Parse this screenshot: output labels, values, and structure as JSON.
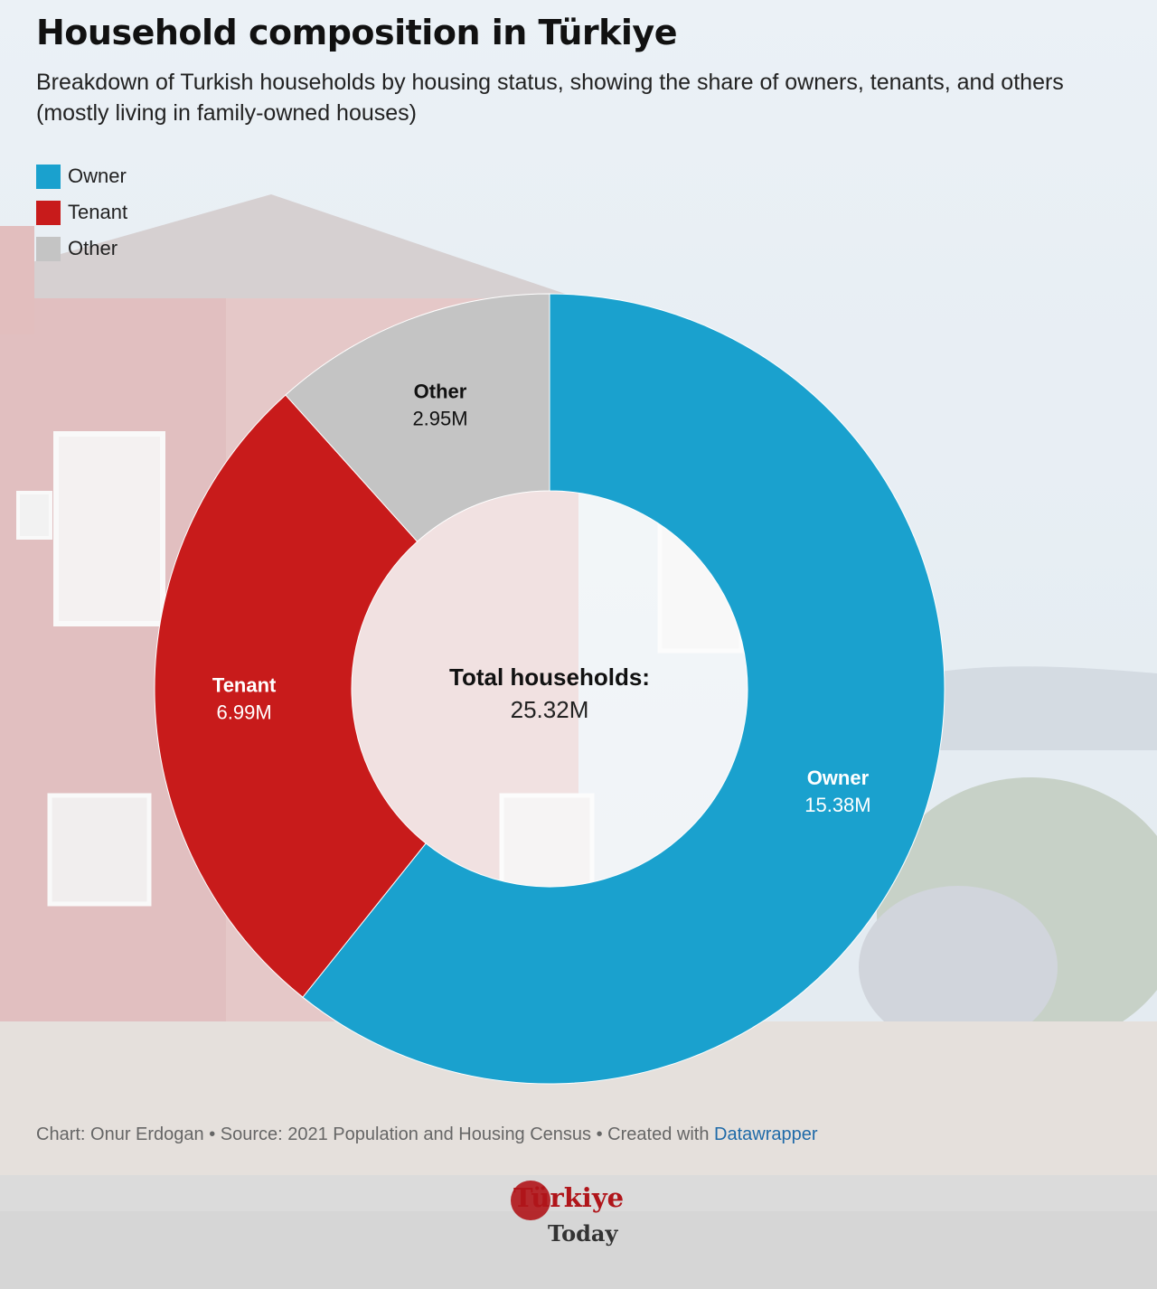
{
  "header": {
    "title": "Household composition in Türkiye",
    "subtitle": "Breakdown of Turkish households by housing status, showing the share of owners, tenants, and others (mostly living in family-owned houses)"
  },
  "legend": [
    {
      "label": "Owner",
      "color": "#1aa1ce"
    },
    {
      "label": "Tenant",
      "color": "#c81b1b"
    },
    {
      "label": "Other",
      "color": "#c4c4c4"
    }
  ],
  "chart_data": {
    "type": "pie",
    "variant": "donut",
    "title": "Household composition in Türkiye",
    "center_label": "Total households:",
    "center_value": "25.32M",
    "total": 25.32,
    "unit": "M",
    "start": "12 o'clock, clockwise",
    "slices": [
      {
        "label": "Owner",
        "value": 15.38,
        "value_label": "15.38M",
        "color": "#1aa1ce",
        "label_color": "#ffffff"
      },
      {
        "label": "Tenant",
        "value": 6.99,
        "value_label": "6.99M",
        "color": "#c81b1b",
        "label_color": "#ffffff"
      },
      {
        "label": "Other",
        "value": 2.95,
        "value_label": "2.95M",
        "color": "#c4c4c4",
        "label_color": "#111111"
      }
    ],
    "legend_position": "top-left"
  },
  "footer": {
    "credit": "Chart: Onur Erdogan • Source: 2021 Population and Housing Census • Created with ",
    "link": "Datawrapper"
  },
  "logo": {
    "main": "Türkiye",
    "sub": "Today"
  }
}
